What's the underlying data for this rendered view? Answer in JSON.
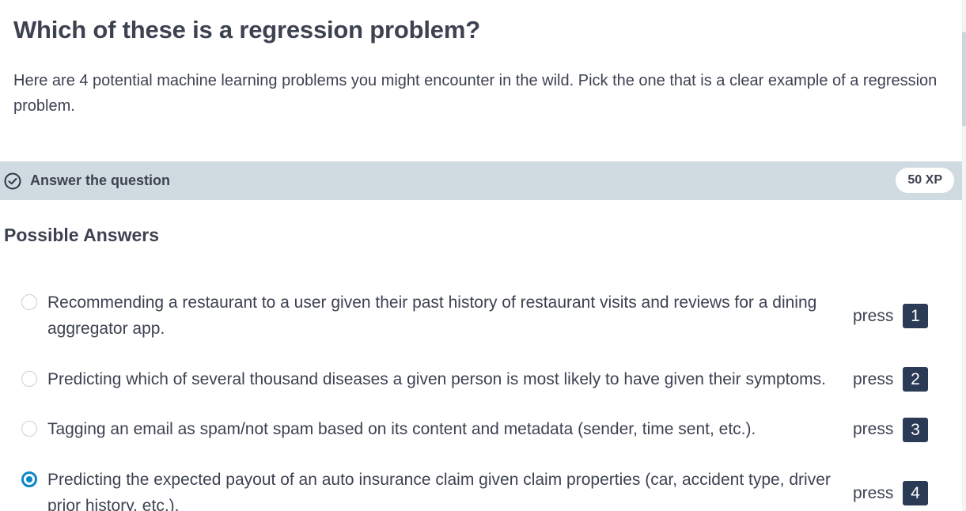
{
  "question": {
    "title": "Which of these is a regression problem?",
    "description": "Here are 4 potential machine learning problems you might encounter in the wild. Pick the one that is a clear example of a regression problem."
  },
  "task_bar": {
    "icon": "check-circle-icon",
    "label": "Answer the question",
    "xp": "50 XP"
  },
  "answers": {
    "heading": "Possible Answers",
    "press_label": "press",
    "options": [
      {
        "text": "Recommending a restaurant to a user given their past history of restaurant visits and reviews for a dining aggregator app.",
        "key": "1",
        "selected": false
      },
      {
        "text": "Predicting which of several thousand diseases a given person is most likely to have given their symptoms.",
        "key": "2",
        "selected": false
      },
      {
        "text": "Tagging an email as spam/not spam based on its content and metadata (sender, time sent, etc.).",
        "key": "3",
        "selected": false
      },
      {
        "text": "Predicting the expected payout of an auto insurance claim given claim properties (car, accident type, driver prior history, etc.).",
        "key": "4",
        "selected": true
      }
    ]
  },
  "colors": {
    "task_bar_bg": "#d0dbe1",
    "selected_radio": "#0b86c7",
    "key_badge_bg": "#2b3a55"
  }
}
